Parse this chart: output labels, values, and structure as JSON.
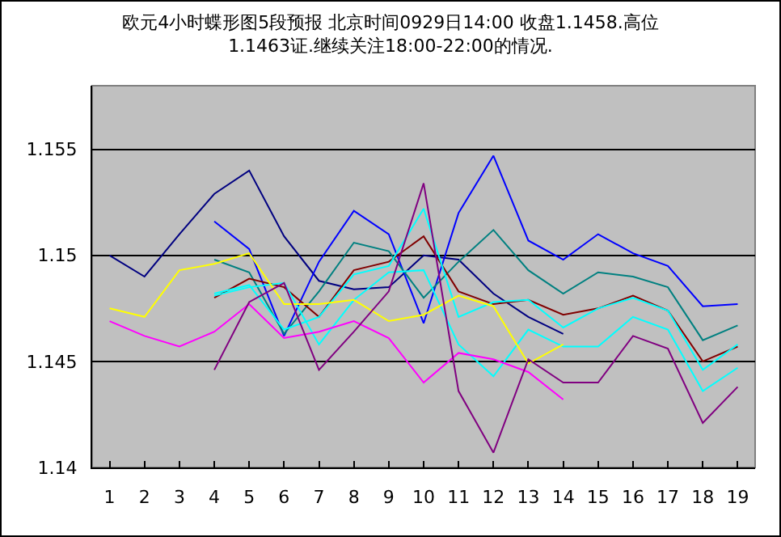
{
  "chart_data": {
    "type": "line",
    "title": "欧元4小时蝶形图5段预报 北京时间0929日14:00 收盘1.1458.高位\n1.1463证.继续关注18:00-22:00的情况.",
    "x": [
      1,
      2,
      3,
      4,
      5,
      6,
      7,
      8,
      9,
      10,
      11,
      12,
      13,
      14,
      15,
      16,
      17,
      18,
      19
    ],
    "xlim": [
      0.5,
      19.5
    ],
    "xticks": [
      1,
      2,
      3,
      4,
      5,
      6,
      7,
      8,
      9,
      10,
      11,
      12,
      13,
      14,
      15,
      16,
      17,
      18,
      19
    ],
    "ylim": [
      1.14,
      1.158
    ],
    "yticks": [
      1.14,
      1.145,
      1.15,
      1.155
    ],
    "grid": "y",
    "marker": "none",
    "line_style": "solid",
    "series": [
      {
        "color": "#000080",
        "values": [
          1.15,
          1.149,
          1.151,
          1.1529,
          1.154,
          1.1509,
          1.1488,
          1.1484,
          1.1485,
          1.15,
          1.1498,
          1.1482,
          1.1471,
          1.1463,
          null,
          null,
          null,
          null,
          null
        ]
      },
      {
        "color": "#0000ff",
        "values": [
          null,
          null,
          null,
          1.1516,
          1.1503,
          1.1462,
          1.1497,
          1.1521,
          1.151,
          1.1468,
          1.152,
          1.1547,
          1.1507,
          1.1498,
          1.151,
          1.1501,
          1.1495,
          1.1476,
          1.1477
        ]
      },
      {
        "color": "#008080",
        "values": [
          null,
          null,
          null,
          1.1498,
          1.1492,
          1.1463,
          1.1483,
          1.1506,
          1.1502,
          1.148,
          1.1497,
          1.1512,
          1.1493,
          1.1482,
          1.1492,
          1.149,
          1.1485,
          1.146,
          1.1467
        ]
      },
      {
        "color": "#800000",
        "values": [
          null,
          null,
          null,
          1.148,
          1.1489,
          1.1485,
          1.1471,
          1.1493,
          1.1497,
          1.1509,
          1.1483,
          1.1477,
          1.1479,
          1.1472,
          1.1475,
          1.1481,
          1.1474,
          1.145,
          1.1457
        ]
      },
      {
        "color": "#00ffff",
        "values": [
          null,
          null,
          null,
          1.1482,
          1.1486,
          1.1465,
          1.1471,
          1.1491,
          1.1495,
          1.1522,
          1.1471,
          1.1478,
          1.1479,
          1.1466,
          1.1475,
          1.148,
          1.1474,
          1.1446,
          1.1458
        ]
      },
      {
        "color": "#00ffff",
        "values": [
          null,
          null,
          null,
          1.1481,
          1.1485,
          1.1487,
          1.1458,
          1.1479,
          1.1492,
          1.1493,
          1.1458,
          1.1443,
          1.1465,
          1.1457,
          1.1457,
          1.1471,
          1.1465,
          1.1436,
          1.1447
        ]
      },
      {
        "color": "#ffff00",
        "values": [
          1.1475,
          1.1471,
          1.1493,
          1.1496,
          1.1501,
          1.1477,
          1.1477,
          1.1479,
          1.1469,
          1.1472,
          1.1481,
          1.1476,
          1.1449,
          1.1458,
          null,
          null,
          null,
          null,
          null
        ]
      },
      {
        "color": "#ff00ff",
        "values": [
          1.1469,
          1.1462,
          1.1457,
          1.1464,
          1.1477,
          1.1461,
          1.1464,
          1.1469,
          1.1461,
          1.144,
          1.1454,
          1.1451,
          1.1445,
          1.1432,
          null,
          null,
          null,
          null,
          null
        ]
      },
      {
        "color": "#800080",
        "values": [
          null,
          null,
          null,
          1.1446,
          1.1478,
          1.1487,
          1.1446,
          1.1464,
          1.1483,
          1.1534,
          1.1436,
          1.1407,
          1.1451,
          1.144,
          1.144,
          1.1462,
          1.1456,
          1.1421,
          1.1438
        ]
      }
    ]
  }
}
